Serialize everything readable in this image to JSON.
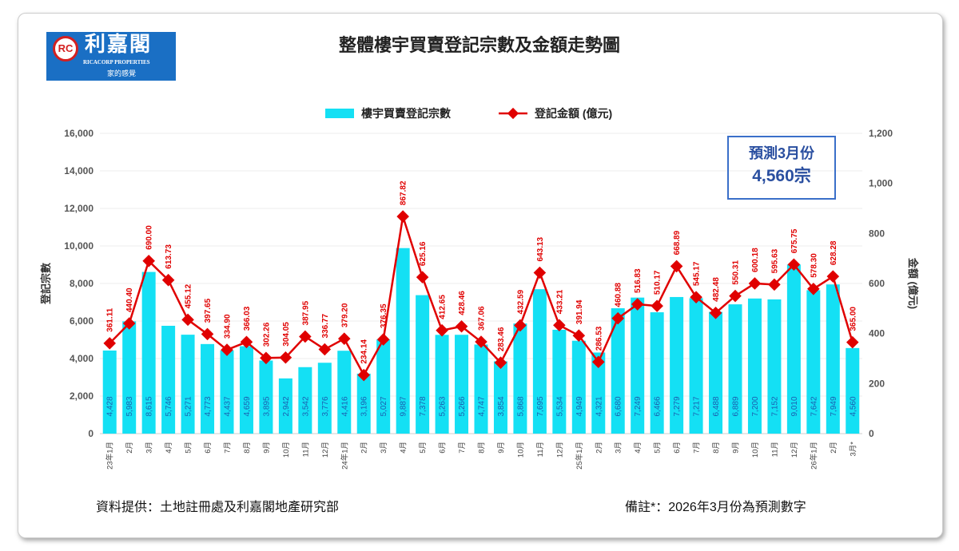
{
  "logo": {
    "name": "利嘉閣",
    "english": "RICACORP PROPERTIES",
    "slogan": "家的感覺"
  },
  "colors": {
    "bar": "#14e0f4",
    "line": "#e00000",
    "bar_label": "#1a5fb0"
  },
  "chart_data": {
    "type": "bar",
    "title": "整體樓宇買賣登記宗數及金額走勢圖",
    "ylabel": "登記宗數",
    "y2label": "金額 (億元)",
    "ylim": [
      0,
      16000
    ],
    "y2lim": [
      0,
      1200
    ],
    "yticks": [
      "0",
      "2,000",
      "4,000",
      "6,000",
      "8,000",
      "10,000",
      "12,000",
      "14,000",
      "16,000"
    ],
    "y2ticks": [
      "0",
      "200",
      "400",
      "600",
      "800",
      "1,000",
      "1,200"
    ],
    "grid": true,
    "legend_position": "top",
    "categories": [
      "23年1月",
      "2月",
      "3月",
      "4月",
      "5月",
      "6月",
      "7月",
      "8月",
      "9月",
      "10月",
      "11月",
      "12月",
      "24年1月",
      "2月",
      "3月",
      "4月",
      "5月",
      "6月",
      "7月",
      "8月",
      "9月",
      "10月",
      "11月",
      "12月",
      "25年1月",
      "2月",
      "3月",
      "4月",
      "5月",
      "6月",
      "7月",
      "8月",
      "9月",
      "10月",
      "11月",
      "12月",
      "26年1月",
      "2月",
      "3月*"
    ],
    "series": [
      {
        "name": "樓宇買賣登記宗數",
        "type": "bar",
        "axis": "left",
        "values": [
          4428,
          5983,
          8615,
          5746,
          5271,
          4773,
          4437,
          4659,
          3895,
          2942,
          3542,
          3776,
          4416,
          3196,
          5027,
          9887,
          7378,
          5263,
          5266,
          4747,
          3854,
          5868,
          7695,
          5534,
          4949,
          4321,
          6680,
          7249,
          6466,
          7279,
          7217,
          6488,
          6889,
          7200,
          7152,
          9010,
          7642,
          7949,
          4560
        ]
      },
      {
        "name": "登記金額 (億元)",
        "type": "line",
        "axis": "right",
        "values": [
          361.11,
          440.4,
          690.0,
          613.73,
          455.12,
          397.65,
          334.9,
          366.03,
          302.26,
          304.05,
          387.95,
          336.77,
          379.2,
          234.14,
          376.35,
          867.82,
          625.16,
          412.65,
          428.46,
          367.06,
          283.46,
          432.59,
          643.13,
          433.21,
          391.94,
          286.53,
          460.88,
          516.83,
          510.17,
          668.89,
          545.17,
          482.48,
          550.31,
          600.18,
          595.63,
          675.75,
          578.3,
          628.28,
          365.0
        ]
      }
    ],
    "annotation": {
      "line1": "預測3月份",
      "line2": "4,560宗"
    }
  },
  "footer": {
    "source": "資料提供：土地註冊處及利嘉閣地產研究部",
    "note": "備註*：2026年3月份為預測數字"
  }
}
